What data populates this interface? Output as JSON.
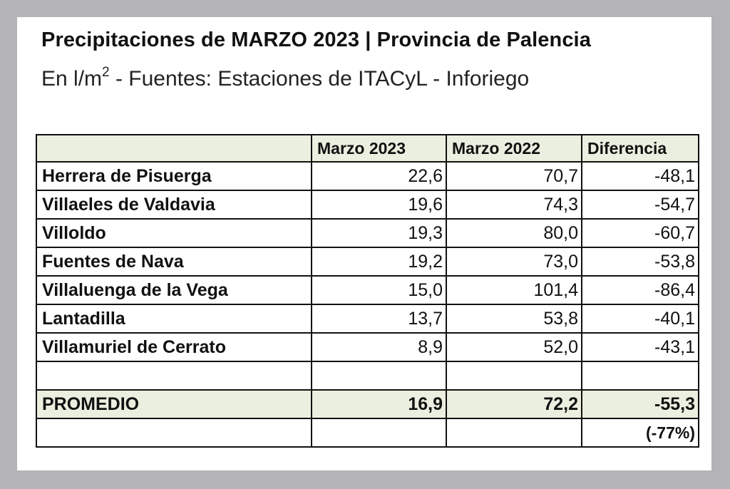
{
  "title": "Precipitaciones de MARZO 2023 | Provincia de Palencia",
  "subtitle": {
    "prefix": "En l/m",
    "superscript": "2",
    "suffix": " - Fuentes: Estaciones de ITACyL - Inforiego"
  },
  "table": {
    "headers": [
      "",
      "Marzo 2023",
      "Marzo 2022",
      "Diferencia"
    ],
    "rows": [
      {
        "name": "Herrera de Pisuerga",
        "m2023": "22,6",
        "m2022": "70,7",
        "diff": "-48,1"
      },
      {
        "name": "Villaeles de Valdavia",
        "m2023": "19,6",
        "m2022": "74,3",
        "diff": "-54,7"
      },
      {
        "name": "Villoldo",
        "m2023": "19,3",
        "m2022": "80,0",
        "diff": "-60,7"
      },
      {
        "name": "Fuentes de Nava",
        "m2023": "19,2",
        "m2022": "73,0",
        "diff": "-53,8"
      },
      {
        "name": "Villaluenga de la Vega",
        "m2023": "15,0",
        "m2022": "101,4",
        "diff": "-86,4"
      },
      {
        "name": "Lantadilla",
        "m2023": "13,7",
        "m2022": "53,8",
        "diff": "-40,1"
      },
      {
        "name": "Villamuriel de Cerrato",
        "m2023": "8,9",
        "m2022": "52,0",
        "diff": "-43,1"
      }
    ],
    "average": {
      "name": "PROMEDIO",
      "m2023": "16,9",
      "m2022": "72,2",
      "diff": "-55,3"
    },
    "percent": "(-77%)"
  },
  "colors": {
    "frame": "#b3b3b8",
    "header_fill": "#ebefdf",
    "border": "#111111"
  }
}
